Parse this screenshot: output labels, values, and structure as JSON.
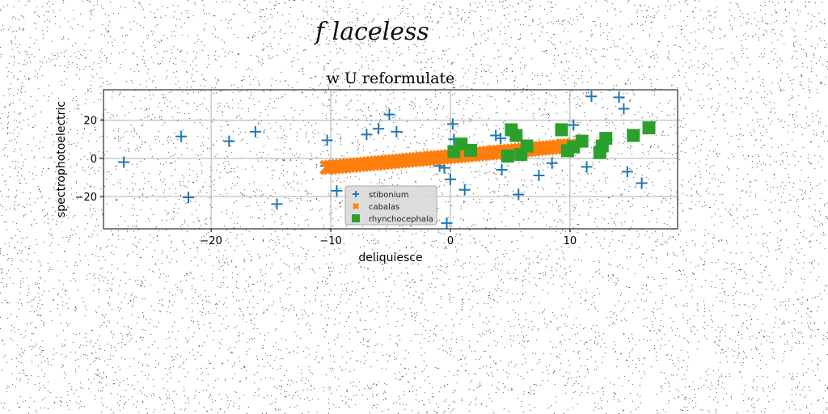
{
  "page": {
    "heading": "f laceless"
  },
  "chart_data": {
    "type": "scatter",
    "title": "w U reformulate",
    "xlabel": "deliquiesce",
    "ylabel": "spectrophotoelectric",
    "xlim": [
      -29,
      19
    ],
    "ylim": [
      -37,
      36
    ],
    "xticks": [
      -20,
      -10,
      0,
      10
    ],
    "yticks": [
      -20,
      0,
      20
    ],
    "grid": true,
    "legend_position": "lower-center",
    "series": [
      {
        "name": "stibonium",
        "marker": "plus",
        "color": "#1f77b4",
        "points": [
          {
            "x": -27.3,
            "y": -2
          },
          {
            "x": -22.5,
            "y": 11.5
          },
          {
            "x": -21.9,
            "y": -20.5
          },
          {
            "x": -18.5,
            "y": 9
          },
          {
            "x": -16.3,
            "y": 14
          },
          {
            "x": -14.5,
            "y": -24
          },
          {
            "x": -10.4,
            "y": -4
          },
          {
            "x": -10.3,
            "y": 9.5
          },
          {
            "x": -9.5,
            "y": -17
          },
          {
            "x": -7,
            "y": 12.5
          },
          {
            "x": -6,
            "y": 15.5
          },
          {
            "x": -5.1,
            "y": 23
          },
          {
            "x": -4.5,
            "y": 14
          },
          {
            "x": -0.9,
            "y": -4
          },
          {
            "x": -0.5,
            "y": -5
          },
          {
            "x": -0.3,
            "y": -34
          },
          {
            "x": 0,
            "y": -11
          },
          {
            "x": 0.2,
            "y": 18
          },
          {
            "x": 0.3,
            "y": 10
          },
          {
            "x": 1.2,
            "y": -16.5
          },
          {
            "x": 3.8,
            "y": 12
          },
          {
            "x": 4.2,
            "y": 10.5
          },
          {
            "x": 4.3,
            "y": -6
          },
          {
            "x": 5.7,
            "y": -19
          },
          {
            "x": 7.4,
            "y": -9
          },
          {
            "x": 8.5,
            "y": -2.5
          },
          {
            "x": 10.3,
            "y": 17.5
          },
          {
            "x": 11.4,
            "y": -4.5
          },
          {
            "x": 11.8,
            "y": 32.5
          },
          {
            "x": 14.1,
            "y": 32
          },
          {
            "x": 14.5,
            "y": 26
          },
          {
            "x": 14.8,
            "y": -7
          },
          {
            "x": 16,
            "y": -13
          }
        ]
      },
      {
        "name": "cabalas",
        "marker": "x",
        "color": "#ff7f0e",
        "line": {
          "x_from": -10.3,
          "x_to": 10.2,
          "y_from": -4.8,
          "y_to": 6.7
        }
      },
      {
        "name": "rhynchocephala",
        "marker": "square",
        "color": "#2ca02c",
        "points": [
          {
            "x": 0.3,
            "y": 3.5
          },
          {
            "x": 0.9,
            "y": 7.5
          },
          {
            "x": 1.7,
            "y": 4.2
          },
          {
            "x": 4.8,
            "y": 1.2
          },
          {
            "x": 5.1,
            "y": 15
          },
          {
            "x": 5.5,
            "y": 12
          },
          {
            "x": 5.9,
            "y": 2
          },
          {
            "x": 6.4,
            "y": 6.5
          },
          {
            "x": 9.3,
            "y": 15
          },
          {
            "x": 9.8,
            "y": 4
          },
          {
            "x": 10.3,
            "y": 6
          },
          {
            "x": 11,
            "y": 9
          },
          {
            "x": 12.5,
            "y": 3
          },
          {
            "x": 12.7,
            "y": 6.5
          },
          {
            "x": 13,
            "y": 10.5
          },
          {
            "x": 15.3,
            "y": 12
          },
          {
            "x": 16.6,
            "y": 16
          }
        ]
      }
    ]
  }
}
